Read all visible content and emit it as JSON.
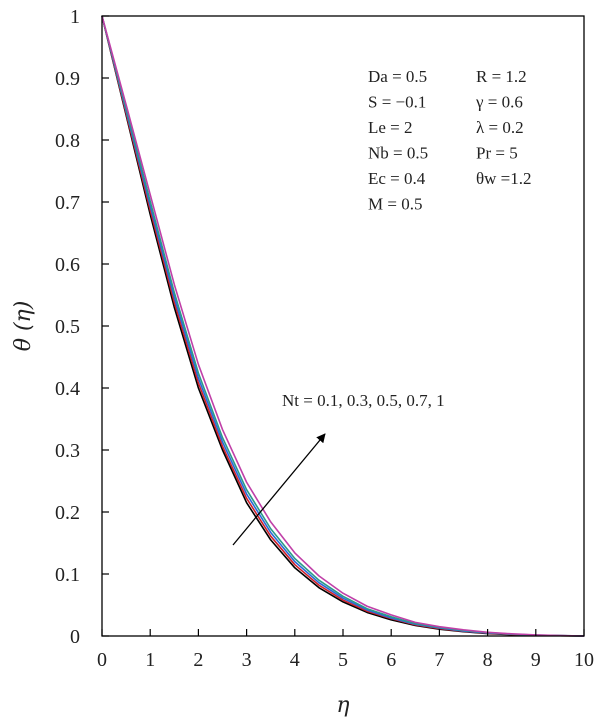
{
  "chart_data": {
    "type": "line",
    "xlabel": "η",
    "ylabel": "θ (η)",
    "xlim": [
      0,
      10
    ],
    "ylim": [
      0,
      1
    ],
    "x_ticks": [
      "0",
      "1",
      "2",
      "3",
      "4",
      "5",
      "6",
      "7",
      "8",
      "9",
      "10"
    ],
    "y_ticks": [
      "0",
      "0.1",
      "0.2",
      "0.3",
      "0.4",
      "0.5",
      "0.6",
      "0.7",
      "0.8",
      "0.9",
      "1"
    ],
    "grid": false,
    "x": [
      0,
      0.5,
      1,
      1.5,
      2,
      2.5,
      3,
      3.5,
      4,
      4.5,
      5,
      5.5,
      6,
      6.5,
      7,
      7.5,
      8,
      8.5,
      9,
      9.5,
      10
    ],
    "series": [
      {
        "color": "#000000",
        "values": [
          1,
          0.84,
          0.68,
          0.53,
          0.4,
          0.3,
          0.215,
          0.155,
          0.11,
          0.078,
          0.055,
          0.038,
          0.026,
          0.017,
          0.011,
          0.007,
          0.004,
          0.002,
          0.001,
          0.0004,
          0
        ]
      },
      {
        "color": "#d0202a",
        "values": [
          1,
          0.843,
          0.687,
          0.538,
          0.408,
          0.306,
          0.222,
          0.161,
          0.115,
          0.082,
          0.058,
          0.04,
          0.028,
          0.018,
          0.012,
          0.0075,
          0.0045,
          0.0025,
          0.0012,
          0.0005,
          0
        ]
      },
      {
        "color": "#2a6ad8",
        "values": [
          1,
          0.847,
          0.694,
          0.546,
          0.416,
          0.313,
          0.229,
          0.167,
          0.12,
          0.086,
          0.061,
          0.042,
          0.029,
          0.019,
          0.013,
          0.008,
          0.005,
          0.0028,
          0.0014,
          0.0006,
          0
        ]
      },
      {
        "color": "#2a9a8a",
        "values": [
          1,
          0.851,
          0.701,
          0.554,
          0.424,
          0.32,
          0.236,
          0.173,
          0.125,
          0.09,
          0.064,
          0.044,
          0.031,
          0.02,
          0.014,
          0.009,
          0.0055,
          0.003,
          0.0016,
          0.0007,
          0
        ]
      },
      {
        "color": "#c040a8",
        "values": [
          1,
          0.857,
          0.712,
          0.567,
          0.438,
          0.333,
          0.248,
          0.184,
          0.134,
          0.097,
          0.069,
          0.048,
          0.034,
          0.022,
          0.015,
          0.01,
          0.006,
          0.0035,
          0.0018,
          0.0008,
          0
        ]
      }
    ],
    "params": [
      [
        "Da = 0.5",
        "R = 1.2"
      ],
      [
        "S = −0.1",
        "γ = 0.6"
      ],
      [
        "Le = 2",
        "λ = 0.2"
      ],
      [
        "Nb = 0.5",
        "Pr = 5"
      ],
      [
        "Ec = 0.4",
        "θw =1.2"
      ],
      [
        "M = 0.5",
        ""
      ]
    ],
    "annotation": "Nt = 0.1, 0.3, 0.5, 0.7, 1"
  }
}
